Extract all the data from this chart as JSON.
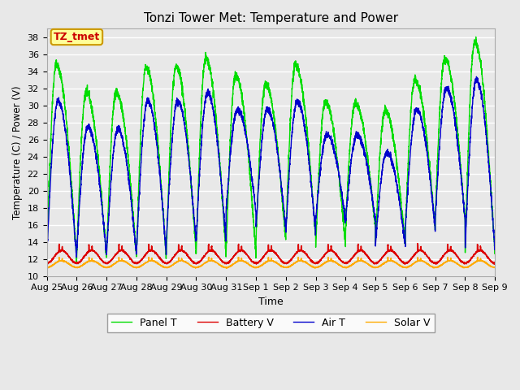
{
  "title": "Tonzi Tower Met: Temperature and Power",
  "xlabel": "Time",
  "ylabel": "Temperature (C) / Power (V)",
  "ylim": [
    10,
    39
  ],
  "yticks": [
    10,
    12,
    14,
    16,
    18,
    20,
    22,
    24,
    26,
    28,
    30,
    32,
    34,
    36,
    38
  ],
  "xlabels": [
    "Aug 25",
    "Aug 26",
    "Aug 27",
    "Aug 28",
    "Aug 29",
    "Aug 30",
    "Aug 31",
    "Sep 1",
    "Sep 2",
    "Sep 3",
    "Sep 4",
    "Sep 5",
    "Sep 6",
    "Sep 7",
    "Sep 8",
    "Sep 9"
  ],
  "colors": {
    "panel_t": "#00dd00",
    "battery_v": "#dd0000",
    "air_t": "#0000cc",
    "solar_v": "#ffaa00"
  },
  "annotation_text": "TZ_tmet",
  "annotation_color": "#cc0000",
  "annotation_bg": "#ffff99",
  "plot_bg": "#e8e8e8",
  "fig_bg": "#e8e8e8",
  "legend_labels": [
    "Panel T",
    "Battery V",
    "Air T",
    "Solar V"
  ],
  "n_days": 15,
  "points_per_day": 288,
  "panel_peaks": [
    34.8,
    31.5,
    31.5,
    34.5,
    34.5,
    35.5,
    33.5,
    32.5,
    34.7,
    30.4,
    30.2,
    29.4,
    33.0,
    35.5,
    37.5
  ],
  "panel_mins": [
    12.0,
    12.0,
    12.5,
    12.0,
    12.5,
    12.5,
    12.5,
    14.0,
    14.5,
    13.5,
    15.5,
    13.5,
    15.5,
    16.5,
    12.5
  ],
  "air_peaks": [
    30.5,
    27.5,
    27.2,
    30.5,
    30.5,
    31.5,
    29.5,
    29.5,
    30.5,
    26.5,
    26.5,
    24.5,
    29.5,
    32.0,
    33.0
  ],
  "air_mins": [
    12.0,
    12.5,
    12.5,
    12.5,
    14.0,
    14.0,
    17.5,
    15.5,
    15.0,
    16.5,
    16.5,
    13.5,
    15.5,
    16.5,
    13.0
  ],
  "battery_peak": 13.0,
  "battery_min": 11.5,
  "solar_peak": 11.8,
  "solar_min": 11.0
}
